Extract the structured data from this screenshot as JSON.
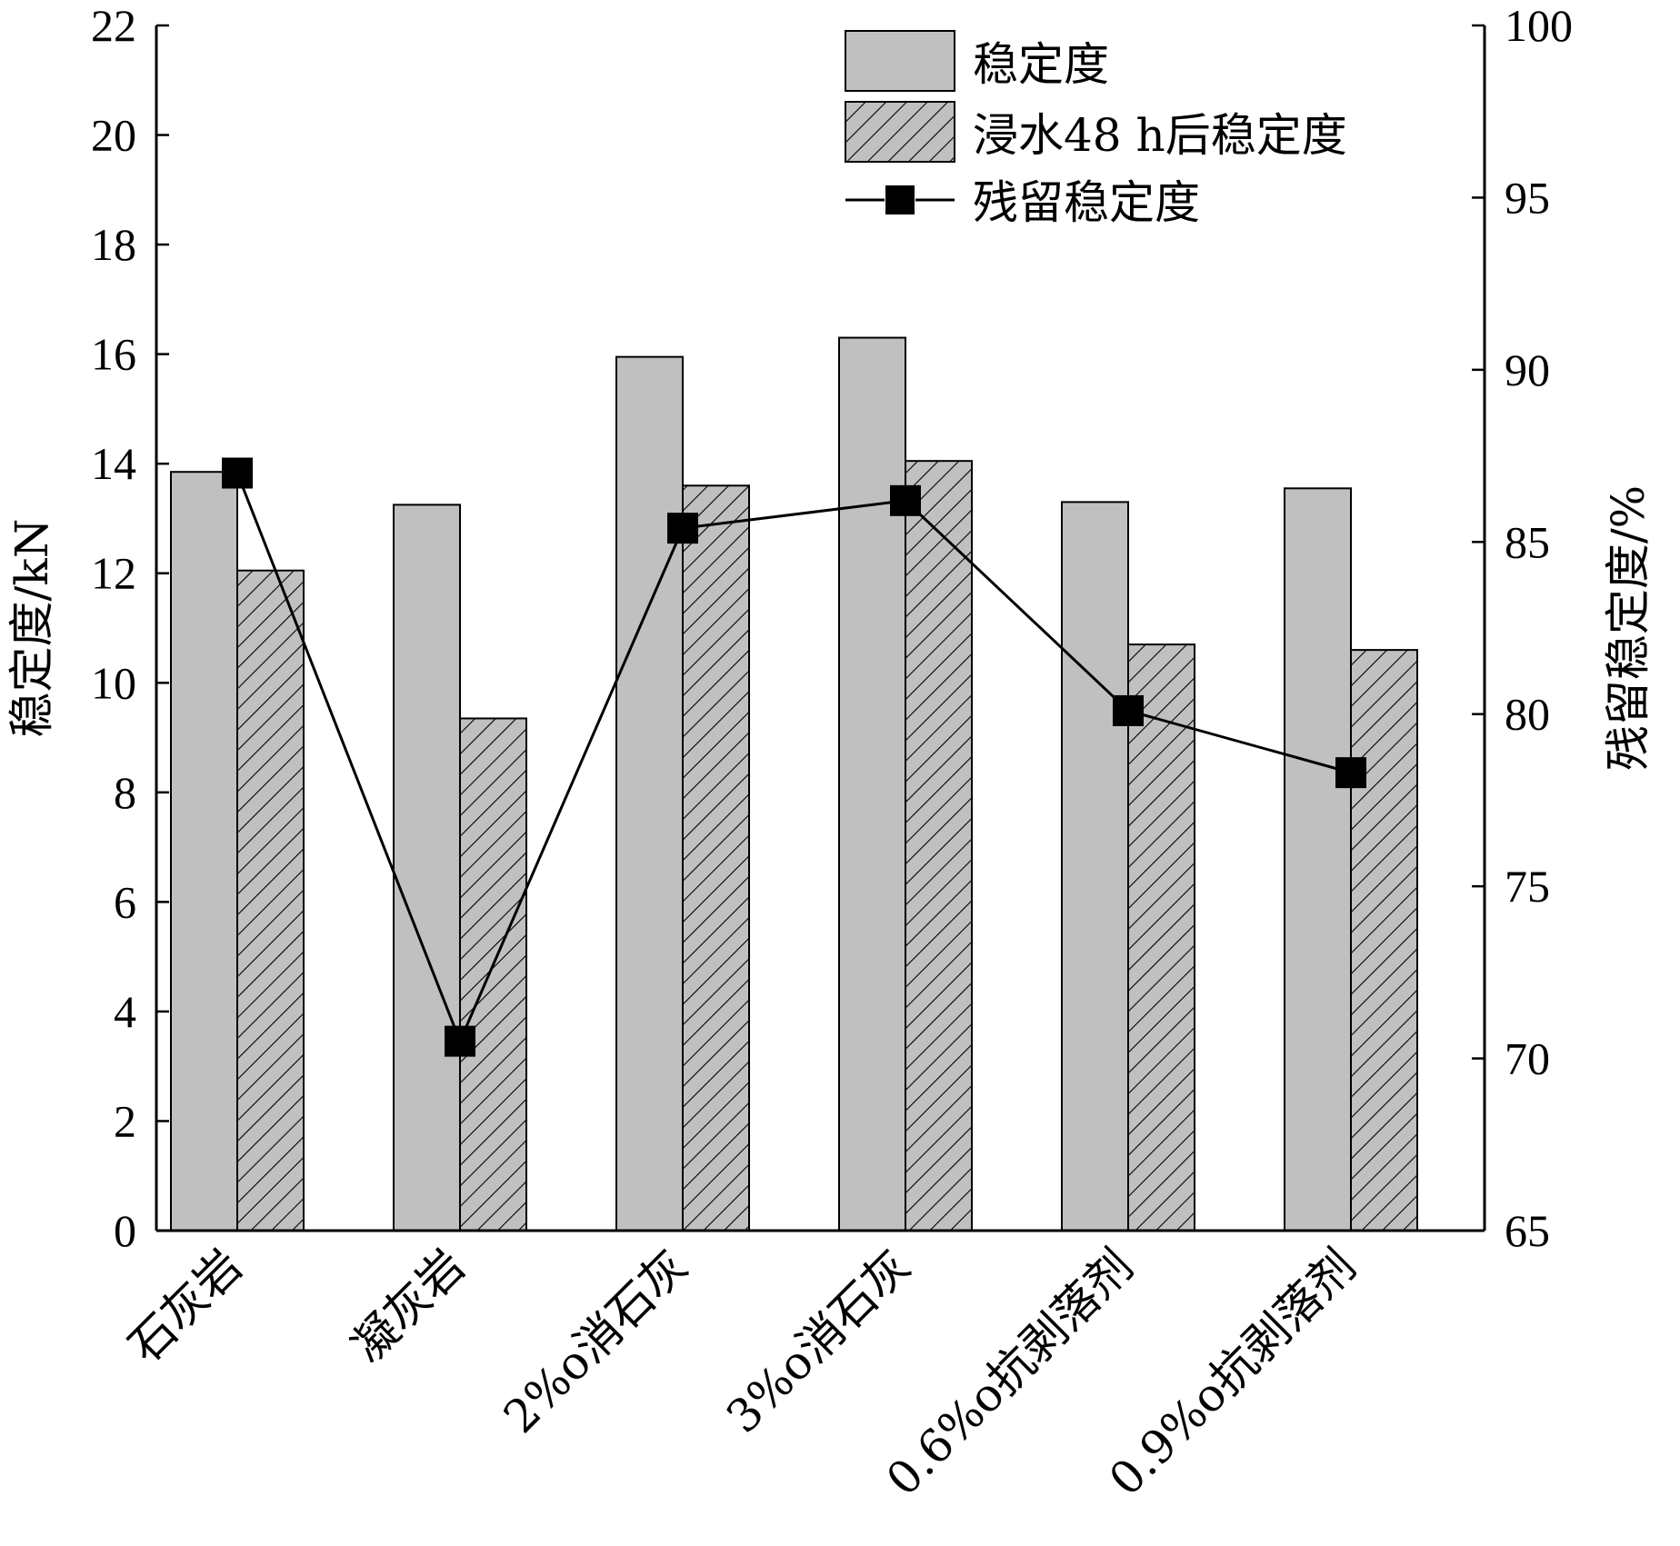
{
  "chart_data": {
    "type": "bar",
    "categories": [
      "石灰岩",
      "凝灰岩",
      "2%o消石灰",
      "3%o消石灰",
      "0.6%o抗剥落剂",
      "0.9%o抗剥落剂"
    ],
    "series": [
      {
        "name": "稳定度",
        "type": "bar",
        "axis": "left",
        "values": [
          13.85,
          13.25,
          15.95,
          16.3,
          13.3,
          13.55
        ],
        "color": "#c0c0c0",
        "pattern": "solid"
      },
      {
        "name": "浸水48 h后稳定度",
        "type": "bar",
        "axis": "left",
        "values": [
          12.05,
          9.35,
          13.6,
          14.05,
          10.7,
          10.6
        ],
        "color": "#c0c0c0",
        "pattern": "hatched"
      },
      {
        "name": "残留稳定度",
        "type": "line",
        "axis": "right",
        "values": [
          87.0,
          70.5,
          85.4,
          86.2,
          80.1,
          78.3
        ],
        "color": "#000000",
        "marker": "square"
      }
    ],
    "y_left": {
      "label": "稳定度/kN",
      "min": 0,
      "max": 22,
      "ticks": [
        0,
        2,
        4,
        6,
        8,
        10,
        12,
        14,
        16,
        18,
        20,
        22
      ]
    },
    "y_right": {
      "label": "残留稳定度/%",
      "min": 65,
      "max": 100,
      "ticks": [
        65,
        70,
        75,
        80,
        85,
        90,
        95,
        100
      ]
    },
    "legend": {
      "position": "top-right"
    },
    "grid": false
  }
}
